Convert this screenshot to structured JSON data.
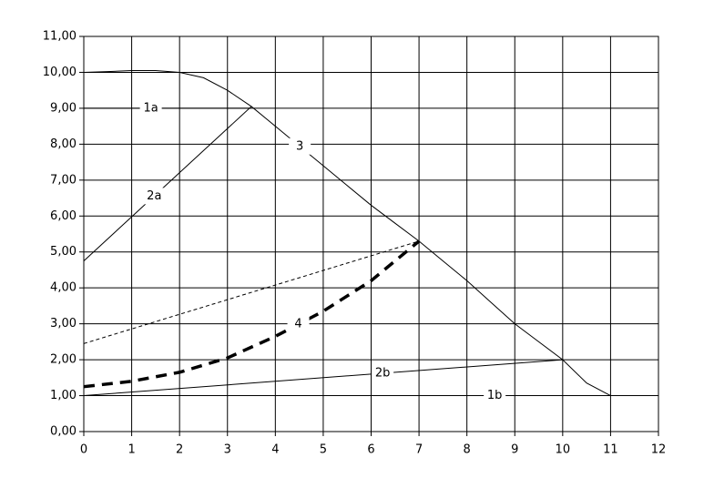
{
  "chart_data": {
    "type": "line",
    "xlim": [
      0,
      12
    ],
    "xticks": [
      0,
      1,
      2,
      3,
      4,
      5,
      6,
      7,
      8,
      9,
      10,
      11,
      12
    ],
    "ylim": [
      0,
      11
    ],
    "yticks": [
      {
        "value": 0,
        "label": "0,00"
      },
      {
        "value": 1,
        "label": "1,00"
      },
      {
        "value": 2,
        "label": "2,00"
      },
      {
        "value": 3,
        "label": "3,00"
      },
      {
        "value": 4,
        "label": "4,00"
      },
      {
        "value": 5,
        "label": "5,00"
      },
      {
        "value": 6,
        "label": "6,00"
      },
      {
        "value": 7,
        "label": "7,00"
      },
      {
        "value": 8,
        "label": "8,00"
      },
      {
        "value": 9,
        "label": "9,00"
      },
      {
        "value": 10,
        "label": "10,00"
      },
      {
        "value": 11,
        "label": "11,00"
      }
    ],
    "grid": true,
    "series": [
      {
        "name": "1a",
        "color": "#000000",
        "style": "solid",
        "x": [
          0,
          3.5
        ],
        "values": [
          9,
          9
        ]
      },
      {
        "name": "2a",
        "color": "#000000",
        "style": "solid",
        "x": [
          0,
          3.5
        ],
        "values": [
          4.75,
          9.05
        ]
      },
      {
        "name": "3",
        "color": "#000000",
        "style": "solid",
        "x": [
          0,
          0.5,
          1,
          1.5,
          2,
          2.5,
          3,
          3.5,
          4,
          4.5,
          5,
          5.5,
          6,
          6.5,
          7,
          7.5,
          8,
          8.5,
          9,
          9.5,
          10,
          10.5,
          11
        ],
        "values": [
          10,
          10.02,
          10.05,
          10.05,
          10,
          9.85,
          9.5,
          9.05,
          8.5,
          7.95,
          7.4,
          6.85,
          6.3,
          5.8,
          5.3,
          4.75,
          4.2,
          3.6,
          3.0,
          2.5,
          2.0,
          1.35,
          1.0
        ]
      },
      {
        "color": "#000000",
        "style": "dashed",
        "x": [
          0,
          7
        ],
        "values": [
          2.45,
          5.3
        ]
      },
      {
        "name": "4",
        "color": "#000000",
        "style": "thick-dashed",
        "x": [
          0,
          1,
          2,
          3,
          4,
          5,
          6,
          7
        ],
        "values": [
          1.25,
          1.4,
          1.65,
          2.05,
          2.65,
          3.35,
          4.2,
          5.3
        ]
      },
      {
        "name": "2b",
        "color": "#000000",
        "style": "solid",
        "x": [
          0,
          10
        ],
        "values": [
          1,
          2
        ]
      },
      {
        "name": "1b",
        "color": "#000000",
        "style": "solid",
        "x": [
          0,
          11
        ],
        "values": [
          1,
          1
        ]
      }
    ]
  }
}
